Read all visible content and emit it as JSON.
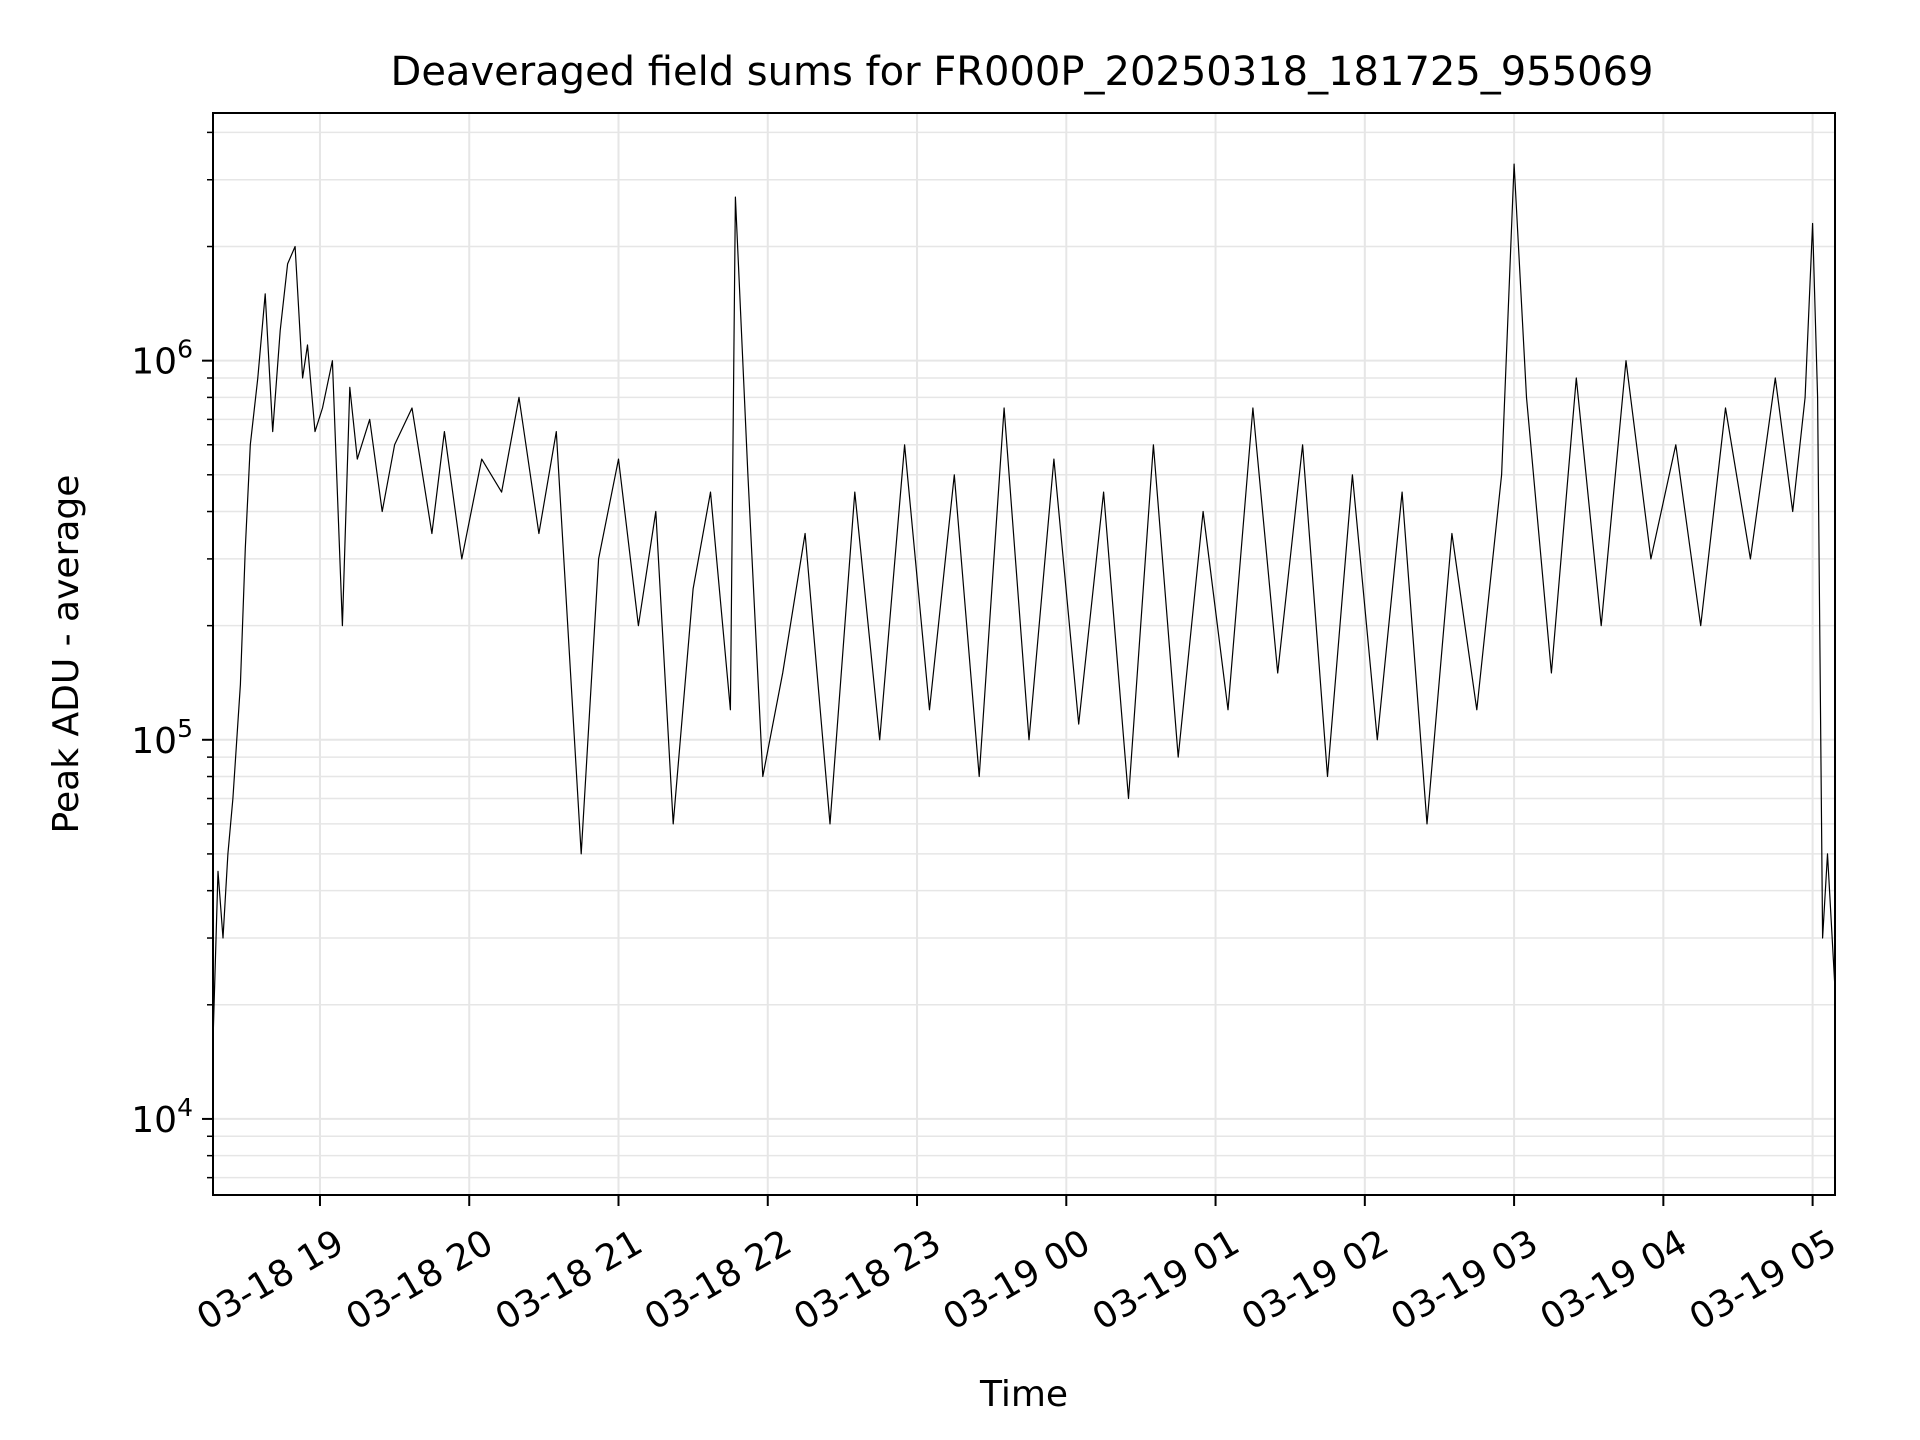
{
  "chart_data": {
    "type": "line",
    "title": "Deaveraged field sums for FR000P_20250318_181725_955069",
    "xlabel": "Time",
    "ylabel": "Peak ADU - average",
    "y_scale": "log",
    "ylim": [
      6300,
      4500000
    ],
    "xlim": [
      "2025-03-18 18:17",
      "2025-03-19 05:09"
    ],
    "x_ticks": [
      {
        "at": "2025-03-18 19:00",
        "label": "03-18 19"
      },
      {
        "at": "2025-03-18 20:00",
        "label": "03-18 20"
      },
      {
        "at": "2025-03-18 21:00",
        "label": "03-18 21"
      },
      {
        "at": "2025-03-18 22:00",
        "label": "03-18 22"
      },
      {
        "at": "2025-03-18 23:00",
        "label": "03-18 23"
      },
      {
        "at": "2025-03-19 00:00",
        "label": "03-19 00"
      },
      {
        "at": "2025-03-19 01:00",
        "label": "03-19 01"
      },
      {
        "at": "2025-03-19 02:00",
        "label": "03-19 02"
      },
      {
        "at": "2025-03-19 03:00",
        "label": "03-19 03"
      },
      {
        "at": "2025-03-19 04:00",
        "label": "03-19 04"
      },
      {
        "at": "2025-03-19 05:00",
        "label": "03-19 05"
      }
    ],
    "y_ticks": [
      {
        "value": 10000,
        "base": "10",
        "exp": "4"
      },
      {
        "value": 100000,
        "base": "10",
        "exp": "5"
      },
      {
        "value": 1000000,
        "base": "10",
        "exp": "6"
      }
    ],
    "grid": true,
    "line_color": "#000000",
    "grid_color": "#e6e6e6",
    "series": [
      {
        "x": [
          "2025-03-18 18:17",
          "2025-03-18 18:19",
          "2025-03-18 18:21",
          "2025-03-18 18:23",
          "2025-03-18 18:25",
          "2025-03-18 18:28",
          "2025-03-18 18:30",
          "2025-03-18 18:32",
          "2025-03-18 18:35",
          "2025-03-18 18:38",
          "2025-03-18 18:41",
          "2025-03-18 18:44",
          "2025-03-18 18:47",
          "2025-03-18 18:50",
          "2025-03-18 18:53",
          "2025-03-18 18:55",
          "2025-03-18 18:58",
          "2025-03-18 19:01",
          "2025-03-18 19:05",
          "2025-03-18 19:09",
          "2025-03-18 19:12",
          "2025-03-18 19:15",
          "2025-03-18 19:20",
          "2025-03-18 19:25",
          "2025-03-18 19:30",
          "2025-03-18 19:37",
          "2025-03-18 19:45",
          "2025-03-18 19:50",
          "2025-03-18 19:57",
          "2025-03-18 20:05",
          "2025-03-18 20:13",
          "2025-03-18 20:20",
          "2025-03-18 20:28",
          "2025-03-18 20:35",
          "2025-03-18 20:45",
          "2025-03-18 20:52",
          "2025-03-18 21:00",
          "2025-03-18 21:08",
          "2025-03-18 21:15",
          "2025-03-18 21:22",
          "2025-03-18 21:30",
          "2025-03-18 21:37",
          "2025-03-18 21:45",
          "2025-03-18 21:47",
          "2025-03-18 21:52",
          "2025-03-18 21:58",
          "2025-03-18 22:06",
          "2025-03-18 22:15",
          "2025-03-18 22:25",
          "2025-03-18 22:35",
          "2025-03-18 22:45",
          "2025-03-18 22:55",
          "2025-03-18 23:05",
          "2025-03-18 23:15",
          "2025-03-18 23:25",
          "2025-03-18 23:35",
          "2025-03-18 23:45",
          "2025-03-18 23:55",
          "2025-03-19 00:05",
          "2025-03-19 00:15",
          "2025-03-19 00:25",
          "2025-03-19 00:35",
          "2025-03-19 00:45",
          "2025-03-19 00:55",
          "2025-03-19 01:05",
          "2025-03-19 01:15",
          "2025-03-19 01:25",
          "2025-03-19 01:35",
          "2025-03-19 01:45",
          "2025-03-19 01:55",
          "2025-03-19 02:05",
          "2025-03-19 02:15",
          "2025-03-19 02:25",
          "2025-03-19 02:35",
          "2025-03-19 02:45",
          "2025-03-19 02:55",
          "2025-03-19 03:00",
          "2025-03-19 03:05",
          "2025-03-19 03:15",
          "2025-03-19 03:25",
          "2025-03-19 03:35",
          "2025-03-19 03:45",
          "2025-03-19 03:55",
          "2025-03-19 04:05",
          "2025-03-19 04:15",
          "2025-03-19 04:25",
          "2025-03-19 04:35",
          "2025-03-19 04:45",
          "2025-03-19 04:52",
          "2025-03-19 04:57",
          "2025-03-19 05:00",
          "2025-03-19 05:02",
          "2025-03-19 05:04",
          "2025-03-19 05:06",
          "2025-03-19 05:09"
        ],
        "values": [
          16000,
          45000,
          30000,
          50000,
          70000,
          140000,
          320000,
          600000,
          900000,
          1500000,
          650000,
          1200000,
          1800000,
          2000000,
          900000,
          1100000,
          650000,
          750000,
          1000000,
          200000,
          850000,
          550000,
          700000,
          400000,
          600000,
          750000,
          350000,
          650000,
          300000,
          550000,
          450000,
          800000,
          350000,
          650000,
          50000,
          300000,
          550000,
          200000,
          400000,
          60000,
          250000,
          450000,
          120000,
          2700000,
          500000,
          80000,
          150000,
          350000,
          60000,
          450000,
          100000,
          600000,
          120000,
          500000,
          80000,
          750000,
          100000,
          550000,
          110000,
          450000,
          70000,
          600000,
          90000,
          400000,
          120000,
          750000,
          150000,
          600000,
          80000,
          500000,
          100000,
          450000,
          60000,
          350000,
          120000,
          500000,
          3300000,
          800000,
          150000,
          900000,
          200000,
          1000000,
          300000,
          600000,
          200000,
          750000,
          300000,
          900000,
          400000,
          800000,
          2300000,
          800000,
          30000,
          50000,
          22000
        ]
      }
    ]
  }
}
